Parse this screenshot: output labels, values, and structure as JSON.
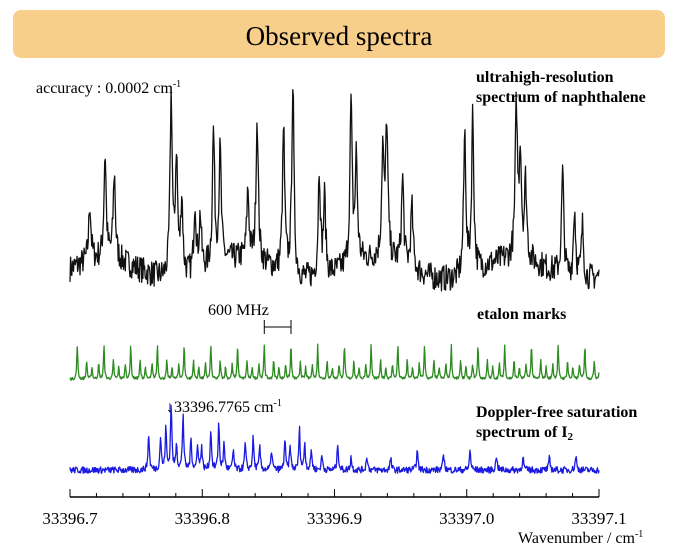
{
  "title": "Observed spectra",
  "accuracy": {
    "text": "accuracy : 0.0002 cm",
    "sup": "-1"
  },
  "labels": {
    "naphthalene_line1": "ultrahigh-resolution",
    "naphthalene_line2": "spectrum of naphthalene",
    "etalon": "etalon marks",
    "doppler_line1": "Doppler-free saturation",
    "doppler_line2": "spectrum of I",
    "doppler_sub": "2",
    "spacing": "600 MHz",
    "marker_arrow": "↓",
    "marker_value": "33396.7765 cm",
    "marker_sup": "-1",
    "xlabel": "Wavenumber / cm",
    "xlabel_sup": "-1"
  },
  "colors": {
    "banner": "#f8cf8a",
    "naphthalene": "#111111",
    "etalon": "#2e8b22",
    "iodine": "#1a1ae0"
  },
  "chart_data": {
    "type": "line",
    "xlabel": "Wavenumber / cm-1",
    "xlim": [
      33396.7,
      33397.1
    ],
    "xticks": [
      33396.7,
      33396.8,
      33396.9,
      33397.0,
      33397.1
    ],
    "xtick_labels": [
      "33396.7",
      "33396.8",
      "33396.9",
      "33397.0",
      "33397.1"
    ],
    "grid": false,
    "marker_line": 33396.7765,
    "series": [
      {
        "name": "ultrahigh-resolution spectrum of naphthalene",
        "color": "#111111",
        "baseline": 0.12,
        "noise": 0.07,
        "peaks": [
          [
            33396.715,
            0.3
          ],
          [
            33396.7265,
            0.55
          ],
          [
            33396.7335,
            0.45
          ],
          [
            33396.7765,
            0.95
          ],
          [
            33396.7805,
            0.62
          ],
          [
            33396.7845,
            0.4
          ],
          [
            33396.7945,
            0.36
          ],
          [
            33396.7985,
            0.28
          ],
          [
            33396.8085,
            0.7
          ],
          [
            33396.8135,
            0.58
          ],
          [
            33396.8345,
            0.36
          ],
          [
            33396.8415,
            0.75
          ],
          [
            33396.8615,
            0.75
          ],
          [
            33396.8685,
            1.0
          ],
          [
            33396.8885,
            0.56
          ],
          [
            33396.8925,
            0.4
          ],
          [
            33396.9125,
            0.85
          ],
          [
            33396.9165,
            0.55
          ],
          [
            33396.9365,
            0.56
          ],
          [
            33396.9395,
            0.7
          ],
          [
            33396.9515,
            0.45
          ],
          [
            33396.9585,
            0.32
          ],
          [
            33396.9985,
            0.74
          ],
          [
            33397.0045,
            0.82
          ],
          [
            33397.0375,
            0.78
          ],
          [
            33397.0405,
            0.55
          ],
          [
            33397.0445,
            0.4
          ],
          [
            33397.0725,
            0.55
          ],
          [
            33397.0815,
            0.36
          ],
          [
            33397.0875,
            0.28
          ]
        ]
      },
      {
        "name": "etalon marks",
        "color": "#2e8b22",
        "period": 0.0202,
        "first": 33396.7055,
        "sub_offsets": [
          0.0071
        ],
        "height": 1.0,
        "sub_height": 0.55,
        "noise": 0.1
      },
      {
        "name": "Doppler-free saturation spectrum of I2",
        "color": "#1a1ae0",
        "baseline": 0.15,
        "noise": 0.05,
        "peaks": [
          [
            33396.7595,
            0.55
          ],
          [
            33396.7685,
            0.5
          ],
          [
            33396.7725,
            0.62
          ],
          [
            33396.7765,
            1.0
          ],
          [
            33396.7805,
            0.4
          ],
          [
            33396.7855,
            0.85
          ],
          [
            33396.7915,
            0.48
          ],
          [
            33396.7965,
            0.4
          ],
          [
            33396.7995,
            0.36
          ],
          [
            33396.8065,
            0.62
          ],
          [
            33396.8125,
            0.7
          ],
          [
            33396.8165,
            0.4
          ],
          [
            33396.8235,
            0.3
          ],
          [
            33396.8325,
            0.4
          ],
          [
            33396.8385,
            0.48
          ],
          [
            33396.8435,
            0.35
          ],
          [
            33396.8525,
            0.3
          ],
          [
            33396.8625,
            0.45
          ],
          [
            33396.8665,
            0.36
          ],
          [
            33396.8735,
            0.62
          ],
          [
            33396.8775,
            0.4
          ],
          [
            33396.8825,
            0.3
          ],
          [
            33396.8905,
            0.22
          ],
          [
            33396.9025,
            0.4
          ],
          [
            33396.9125,
            0.2
          ],
          [
            33396.9245,
            0.22
          ],
          [
            33396.9425,
            0.18
          ],
          [
            33396.9625,
            0.3
          ],
          [
            33396.9825,
            0.24
          ],
          [
            33397.0025,
            0.3
          ],
          [
            33397.0225,
            0.22
          ],
          [
            33397.0425,
            0.2
          ],
          [
            33397.0625,
            0.18
          ],
          [
            33397.0825,
            0.22
          ]
        ]
      }
    ]
  }
}
